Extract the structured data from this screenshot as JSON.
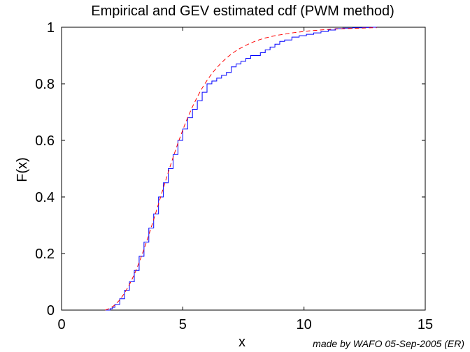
{
  "chart_data": {
    "type": "line",
    "title": "Empirical and GEV estimated cdf (PWM method)",
    "xlabel": "x",
    "ylabel": "F(x)",
    "xlim": [
      0,
      15
    ],
    "ylim": [
      0,
      1
    ],
    "xticks": [
      0,
      5,
      10,
      15
    ],
    "xtick_labels": [
      "0",
      "5",
      "10",
      "15"
    ],
    "yticks": [
      0,
      0.2,
      0.4,
      0.6,
      0.8,
      1
    ],
    "ytick_labels": [
      "0",
      "0.2",
      "0.4",
      "0.6",
      "0.8",
      "1"
    ],
    "grid": false,
    "series": [
      {
        "color": "#0000ff",
        "style": "solid",
        "step": true,
        "x": [
          1.8,
          2.0,
          2.1,
          2.2,
          2.4,
          2.6,
          2.8,
          3.0,
          3.2,
          3.4,
          3.6,
          3.8,
          4.0,
          4.2,
          4.4,
          4.6,
          4.8,
          5.0,
          5.2,
          5.4,
          5.6,
          5.8,
          6.0,
          6.2,
          6.4,
          6.6,
          6.8,
          7.0,
          7.2,
          7.4,
          7.6,
          7.8,
          8.0,
          8.2,
          8.4,
          8.6,
          8.8,
          9.0,
          9.2,
          9.5,
          9.8,
          10.1,
          10.4,
          10.7,
          11.0,
          11.3,
          11.6,
          12.0,
          12.4,
          12.8,
          13.0
        ],
        "y": [
          0.0,
          0.005,
          0.01,
          0.02,
          0.04,
          0.07,
          0.1,
          0.14,
          0.19,
          0.24,
          0.29,
          0.34,
          0.4,
          0.45,
          0.5,
          0.55,
          0.6,
          0.64,
          0.68,
          0.71,
          0.74,
          0.77,
          0.8,
          0.81,
          0.82,
          0.83,
          0.84,
          0.86,
          0.87,
          0.88,
          0.89,
          0.9,
          0.9,
          0.91,
          0.92,
          0.93,
          0.94,
          0.95,
          0.955,
          0.965,
          0.97,
          0.975,
          0.98,
          0.985,
          0.99,
          0.995,
          0.997,
          0.998,
          0.999,
          1.0,
          1.0
        ]
      },
      {
        "color": "#ff0000",
        "style": "dashed",
        "step": false,
        "x": [
          1.8,
          2.0,
          2.2,
          2.4,
          2.6,
          2.8,
          3.0,
          3.2,
          3.4,
          3.6,
          3.8,
          4.0,
          4.2,
          4.4,
          4.6,
          4.8,
          5.0,
          5.2,
          5.4,
          5.6,
          5.8,
          6.0,
          6.2,
          6.4,
          6.6,
          6.8,
          7.0,
          7.2,
          7.4,
          7.6,
          7.8,
          8.0,
          8.2,
          8.4,
          8.6,
          8.8,
          9.0,
          9.3,
          9.6,
          9.9,
          10.2,
          10.5,
          10.8,
          11.1,
          11.4,
          11.7,
          12.0,
          12.4,
          12.8,
          13.0
        ],
        "y": [
          0.0,
          0.006,
          0.018,
          0.036,
          0.06,
          0.09,
          0.126,
          0.168,
          0.215,
          0.266,
          0.32,
          0.376,
          0.432,
          0.487,
          0.54,
          0.59,
          0.637,
          0.68,
          0.719,
          0.754,
          0.785,
          0.812,
          0.836,
          0.857,
          0.875,
          0.891,
          0.905,
          0.917,
          0.927,
          0.936,
          0.944,
          0.951,
          0.957,
          0.962,
          0.966,
          0.97,
          0.973,
          0.977,
          0.981,
          0.984,
          0.987,
          0.989,
          0.991,
          0.993,
          0.994,
          0.995,
          0.996,
          0.997,
          0.998,
          0.998
        ]
      }
    ]
  },
  "credit": "made by WAFO 05-Sep-2005 (ER)"
}
